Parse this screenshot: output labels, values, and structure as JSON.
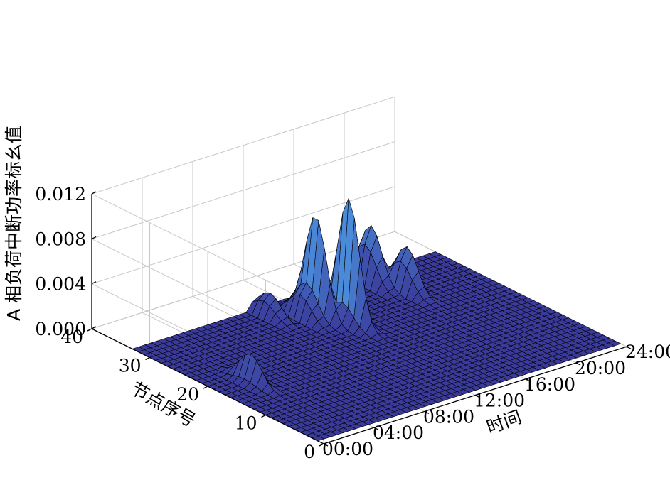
{
  "chart_data": {
    "type": "surface",
    "title": "",
    "xlabel": "时间",
    "ylabel": "节点序号",
    "zlabel": "A 相负荷中断功率标幺值",
    "x_ticks": [
      "00:00",
      "04:00",
      "08:00",
      "12:00",
      "16:00",
      "20:00",
      "24:00"
    ],
    "y_ticks": [
      "0",
      "10",
      "20",
      "30",
      "40"
    ],
    "z_ticks": [
      "0.000",
      "0.004",
      "0.008",
      "0.012"
    ],
    "xlim": [
      0,
      24
    ],
    "ylim": [
      0,
      40
    ],
    "zlim": [
      0,
      0.012
    ],
    "y_data_range": [
      1,
      33
    ],
    "grid": true,
    "colors": {
      "surface_low": "#3a3a9a",
      "surface_high": "#4a8ad8",
      "edge": "#000000"
    },
    "peaks": [
      {
        "hour": 9.8,
        "node": 31,
        "value": 0.0025
      },
      {
        "hour": 11.3,
        "node": 28,
        "value": 0.004
      },
      {
        "hour": 12.1,
        "node": 27.5,
        "value": 0.0096
      },
      {
        "hour": 13.0,
        "node": 24,
        "value": 0.011
      },
      {
        "hour": 17.8,
        "node": 31,
        "value": 0.0066
      },
      {
        "hour": 18.8,
        "node": 27,
        "value": 0.005
      },
      {
        "hour": 2.5,
        "node": 18,
        "value": 0.0025
      }
    ]
  }
}
